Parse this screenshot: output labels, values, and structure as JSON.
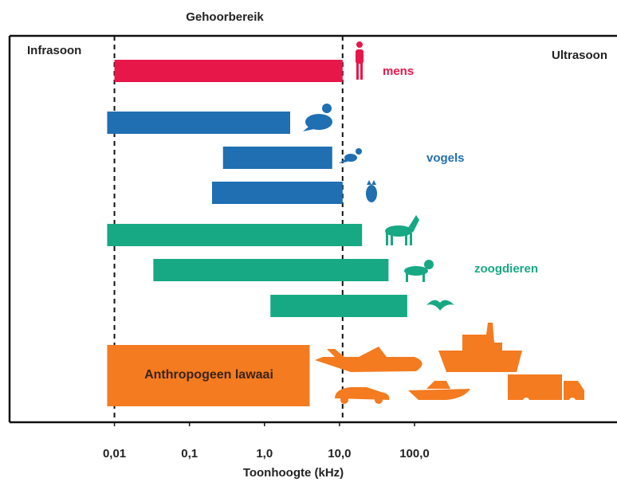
{
  "chart_data": {
    "type": "range_bar",
    "title": "Gehoorbereik",
    "left_label": "Infrasoon",
    "right_label": "Ultrasoon",
    "x_label": "Toonhoogte (kHz)",
    "log_x": true,
    "xlim": [
      0.0004,
      50000
    ],
    "xticks": [
      {
        "value": 0.01,
        "label": "0,01"
      },
      {
        "value": 0.1,
        "label": "0,1"
      },
      {
        "value": 1,
        "label": "1,0"
      },
      {
        "value": 10,
        "label": "10,0"
      },
      {
        "value": 100,
        "label": "100,0"
      }
    ],
    "reference_lines": [
      0.01,
      11
    ],
    "groups": [
      {
        "label": "mens",
        "color": "#e8174a",
        "ranges": [
          [
            0.01,
            11
          ]
        ]
      },
      {
        "label": "vogels",
        "color": "#1f6fb2",
        "ranges": [
          [
            0.008,
            2.2
          ],
          [
            0.28,
            8
          ],
          [
            0.2,
            11
          ]
        ]
      },
      {
        "label": "zoogdieren",
        "color": "#17a884",
        "ranges": [
          [
            0.008,
            20
          ],
          [
            0.033,
            45
          ],
          [
            1.2,
            80
          ]
        ]
      },
      {
        "label": "Anthropogeen lawaai",
        "color": "#f47b20",
        "ranges": [
          [
            0.008,
            4
          ]
        ]
      }
    ]
  }
}
